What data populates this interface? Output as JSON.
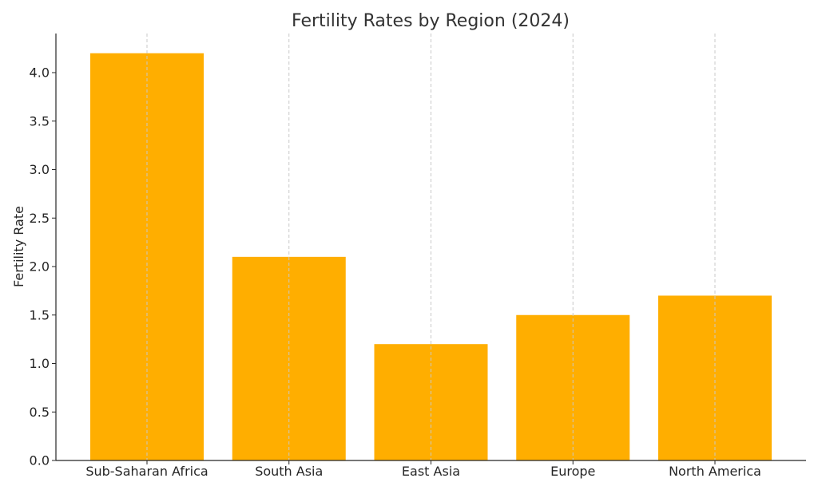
{
  "chart_data": {
    "type": "bar",
    "title": "Fertility Rates by Region (2024)",
    "xlabel": "",
    "ylabel": "Fertility Rate",
    "categories": [
      "Sub-Saharan Africa",
      "South Asia",
      "East Asia",
      "Europe",
      "North America"
    ],
    "values": [
      4.2,
      2.1,
      1.2,
      1.5,
      1.7
    ],
    "ylim": [
      0,
      4.4
    ],
    "yticks": [
      0.0,
      0.5,
      1.0,
      1.5,
      2.0,
      2.5,
      3.0,
      3.5,
      4.0
    ],
    "ytick_labels": [
      "0.0",
      "0.5",
      "1.0",
      "1.5",
      "2.0",
      "2.5",
      "3.0",
      "3.5",
      "4.0"
    ],
    "grid": "vertical dashed",
    "bar_color": "#FFAE00"
  }
}
